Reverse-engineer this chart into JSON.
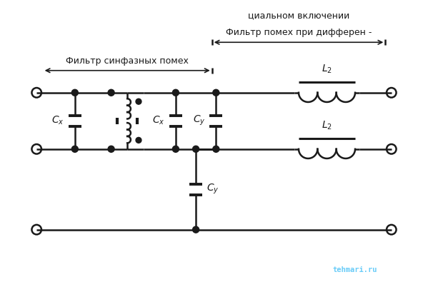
{
  "bg_color": "#ffffff",
  "line_color": "#1a1a1a",
  "line_width": 1.8,
  "title1": "Фильтр помех при дифферен -",
  "title2": "циальном включении",
  "label_sinphase": "Фильтр синфазных помех",
  "label_Cx1": "$C_x$",
  "label_Cx2": "$C_x$",
  "label_Cy_top": "$C_y$",
  "label_Cy_bot": "$C_y$",
  "label_L2_top": "$L_2$",
  "label_L2_bot": "$L_2$",
  "watermark": "tehmari.ru",
  "watermark_color": "#4fc3f7"
}
